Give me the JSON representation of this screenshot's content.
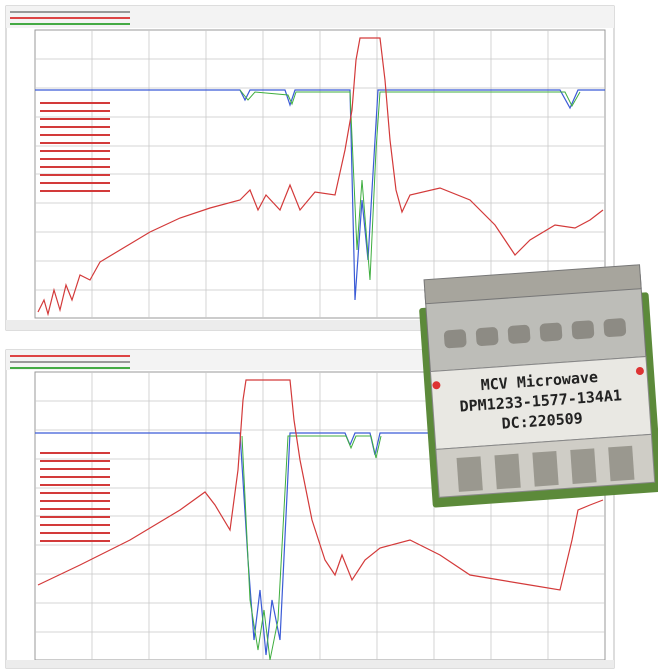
{
  "device_label": {
    "lines": [
      "MCV Microwave",
      "DPM1233-1577-134A1",
      "DC:220509"
    ]
  }
}
